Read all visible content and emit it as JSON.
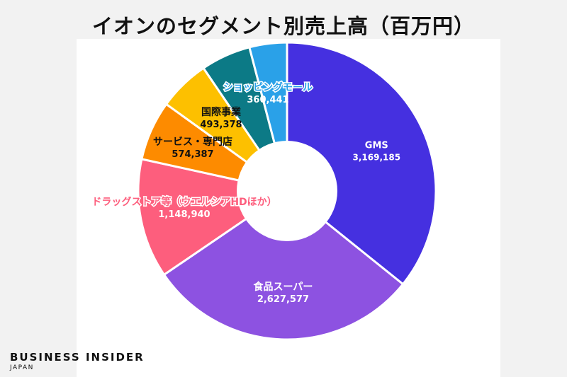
{
  "title": "イオンのセグメント別売上高（百万円）",
  "brand": {
    "name": "BUSINESS INSIDER",
    "region": "JAPAN"
  },
  "chart_data": {
    "type": "pie",
    "donut": true,
    "title": "イオンのセグメント別売上高（百万円）",
    "slices": [
      {
        "label": "GMS",
        "value": 3169185,
        "value_label": "3,169,185",
        "color": "#4530e0",
        "text_color": "#ffffff"
      },
      {
        "label": "食品スーパー",
        "value": 2627577,
        "value_label": "2,627,577",
        "color": "#8d52e1",
        "text_color": "#ffffff"
      },
      {
        "label": "ドラッグストア等（ウエルシアHDほか）",
        "value": 1148940,
        "value_label": "1,148,940",
        "color": "#fd5e7d",
        "text_color": "#ffffff"
      },
      {
        "label": "サービス・専門店",
        "value": 574387,
        "value_label": "574,387",
        "color": "#fd8b00",
        "text_color": "#111111"
      },
      {
        "label": "国際事業",
        "value": 493378,
        "value_label": "493,378",
        "color": "#fdc000",
        "text_color": "#111111"
      },
      {
        "label": "",
        "value": 480000,
        "value_label": "",
        "color": "#0c7a86",
        "text_color": "#ffffff"
      },
      {
        "label": "ショッピングモール",
        "value": 360441,
        "value_label": "360,441",
        "color": "#2aa1e8",
        "text_color": "#ffffff"
      }
    ]
  }
}
